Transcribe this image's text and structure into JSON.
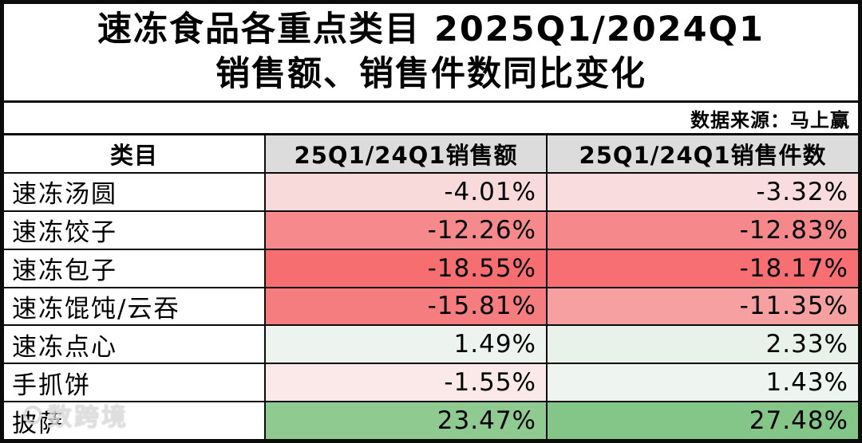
{
  "title": {
    "line1": "速冻食品各重点类目 2025Q1/2024Q1",
    "line2": "销售额、销售件数同比变化"
  },
  "source_note": "数据来源：马上赢",
  "watermark": {
    "logo": "circle-logo",
    "text": "数跨境"
  },
  "colors": {
    "border": "#0b0b0b",
    "header_bg": "#dcdcdc",
    "negative_strong": "#f76f72",
    "negative_light": "#f9dadb",
    "positive_strong": "#83c687",
    "positive_light": "#edf4ef"
  },
  "table": {
    "headers": [
      "类目",
      "25Q1/24Q1销售额",
      "25Q1/24Q1销售件数"
    ],
    "rows": [
      {
        "category": "速冻汤圆",
        "sales": "-4.01%",
        "volume": "-3.32%",
        "sales_bg": "#f9dadb",
        "volume_bg": "#f9dcde"
      },
      {
        "category": "速冻饺子",
        "sales": "-12.26%",
        "volume": "-12.83%",
        "sales_bg": "#f5898c",
        "volume_bg": "#f5888b"
      },
      {
        "category": "速冻包子",
        "sales": "-18.55%",
        "volume": "-18.17%",
        "sales_bg": "#f76e71",
        "volume_bg": "#f76f72"
      },
      {
        "category": "速冻馄饨/云吞",
        "sales": "-15.81%",
        "volume": "-11.35%",
        "sales_bg": "#f67d7f",
        "volume_bg": "#f7a0a1"
      },
      {
        "category": "速冻点心",
        "sales": "1.49%",
        "volume": "2.33%",
        "sales_bg": "#edf4ef",
        "volume_bg": "#e8f2eb"
      },
      {
        "category": "手抓饼",
        "sales": "-1.55%",
        "volume": "1.43%",
        "sales_bg": "#fbe9ea",
        "volume_bg": "#eef5f0"
      },
      {
        "category": "披萨",
        "sales": "23.47%",
        "volume": "27.48%",
        "sales_bg": "#8fca91",
        "volume_bg": "#83c687"
      }
    ]
  },
  "chart_data": {
    "type": "table",
    "title": "速冻食品各重点类目 2025Q1/2024Q1 销售额、销售件数同比变化",
    "source": "数据来源：马上赢",
    "categories": [
      "速冻汤圆",
      "速冻饺子",
      "速冻包子",
      "速冻馄饨/云吞",
      "速冻点心",
      "手抓饼",
      "披萨"
    ],
    "series": [
      {
        "name": "25Q1/24Q1销售额",
        "values": [
          -4.01,
          -12.26,
          -18.55,
          -15.81,
          1.49,
          -1.55,
          23.47
        ],
        "unit": "%"
      },
      {
        "name": "25Q1/24Q1销售件数",
        "values": [
          -3.32,
          -12.83,
          -18.17,
          -11.35,
          2.33,
          1.43,
          27.48
        ],
        "unit": "%"
      }
    ],
    "layout_hints": {
      "conditional_formatting": "red shades for negative values, green shades for positive values"
    }
  }
}
